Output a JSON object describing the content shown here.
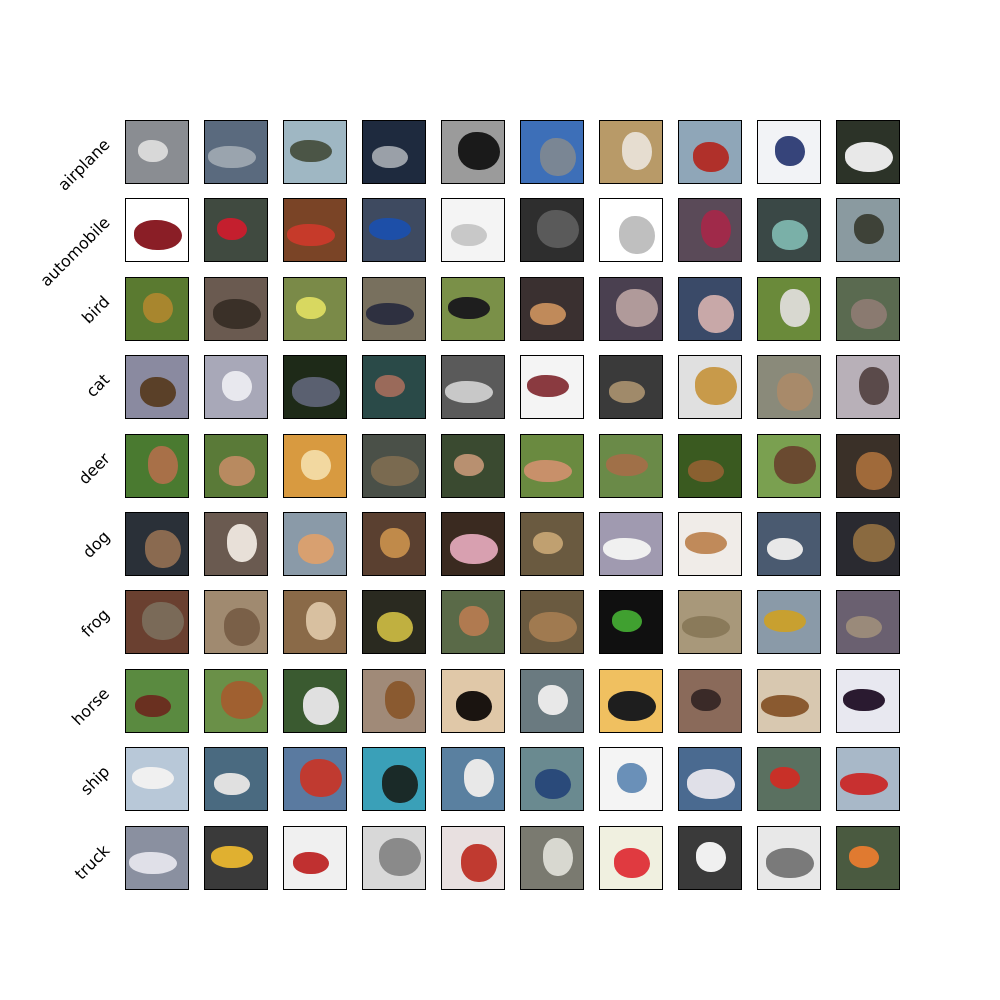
{
  "figure": {
    "rows": [
      {
        "label": "airplane",
        "subject": "airplane-icon",
        "tiles": [
          {
            "bg": "#8a8d92",
            "fg": "#d8d8d8"
          },
          {
            "bg": "#5a6a7e",
            "fg": "#9aa4ae"
          },
          {
            "bg": "#9fb7c3",
            "fg": "#4b5546"
          },
          {
            "bg": "#1e2a3e",
            "fg": "#9aa0a8"
          },
          {
            "bg": "#9b9b9b",
            "fg": "#1a1a1a"
          },
          {
            "bg": "#3d6fb8",
            "fg": "#7a8694"
          },
          {
            "bg": "#b89a68",
            "fg": "#e6ddd0"
          },
          {
            "bg": "#8fa6b8",
            "fg": "#b0302a"
          },
          {
            "bg": "#f2f3f6",
            "fg": "#36447a"
          },
          {
            "bg": "#2c3328",
            "fg": "#e8e8e8"
          }
        ]
      },
      {
        "label": "automobile",
        "subject": "car-icon",
        "tiles": [
          {
            "bg": "#ffffff",
            "fg": "#8a1e26"
          },
          {
            "bg": "#404a40",
            "fg": "#c41f2e"
          },
          {
            "bg": "#7a4426",
            "fg": "#c63a2a"
          },
          {
            "bg": "#3e4a60",
            "fg": "#1d4fa8"
          },
          {
            "bg": "#f4f4f4",
            "fg": "#c8c8c8"
          },
          {
            "bg": "#2e2e2e",
            "fg": "#5a5a5a"
          },
          {
            "bg": "#ffffff",
            "fg": "#bfbfbf"
          },
          {
            "bg": "#5a4a58",
            "fg": "#a02a4a"
          },
          {
            "bg": "#3a4846",
            "fg": "#7ab0a8"
          },
          {
            "bg": "#8a9aa0",
            "fg": "#3e4238"
          }
        ]
      },
      {
        "label": "bird",
        "subject": "bird-icon",
        "tiles": [
          {
            "bg": "#5a7a30",
            "fg": "#a8862e"
          },
          {
            "bg": "#6a5a50",
            "fg": "#3a3028"
          },
          {
            "bg": "#7a8a48",
            "fg": "#d8d860"
          },
          {
            "bg": "#78705e",
            "fg": "#2e3040"
          },
          {
            "bg": "#7a9048",
            "fg": "#1e1e1e"
          },
          {
            "bg": "#3a3030",
            "fg": "#c08a5a"
          },
          {
            "bg": "#4a4050",
            "fg": "#b09a9a"
          },
          {
            "bg": "#3a4a68",
            "fg": "#c8a8a8"
          },
          {
            "bg": "#6a8a3a",
            "fg": "#d8d8d0"
          },
          {
            "bg": "#5a6a50",
            "fg": "#8a7a70"
          }
        ]
      },
      {
        "label": "cat",
        "subject": "cat-icon",
        "tiles": [
          {
            "bg": "#8a8aa0",
            "fg": "#5a4028"
          },
          {
            "bg": "#a8a8b8",
            "fg": "#e8e8ee"
          },
          {
            "bg": "#1e2a18",
            "fg": "#5a6070"
          },
          {
            "bg": "#2a4a48",
            "fg": "#9a6a5a"
          },
          {
            "bg": "#5a5a5a",
            "fg": "#c8c8c8"
          },
          {
            "bg": "#f4f4f4",
            "fg": "#8a3a40"
          },
          {
            "bg": "#3a3a3a",
            "fg": "#a08a6a"
          },
          {
            "bg": "#e0e0e0",
            "fg": "#c89a4a"
          },
          {
            "bg": "#8a8a7a",
            "fg": "#a88a6a"
          },
          {
            "bg": "#b8b0b8",
            "fg": "#5a4a4a"
          }
        ]
      },
      {
        "label": "deer",
        "subject": "deer-icon",
        "tiles": [
          {
            "bg": "#4a7a30",
            "fg": "#a87048"
          },
          {
            "bg": "#5a7a38",
            "fg": "#b88a60"
          },
          {
            "bg": "#d89a40",
            "fg": "#f2d8a0"
          },
          {
            "bg": "#4a5048",
            "fg": "#7a6a50"
          },
          {
            "bg": "#3a4a30",
            "fg": "#b89070"
          },
          {
            "bg": "#6a8a40",
            "fg": "#c8906a"
          },
          {
            "bg": "#6a8a48",
            "fg": "#a07048"
          },
          {
            "bg": "#3a5a20",
            "fg": "#8a6030"
          },
          {
            "bg": "#7aa050",
            "fg": "#6a4a30"
          },
          {
            "bg": "#3a3028",
            "fg": "#a06a3a"
          }
        ]
      },
      {
        "label": "dog",
        "subject": "dog-icon",
        "tiles": [
          {
            "bg": "#2a3038",
            "fg": "#8a6a50"
          },
          {
            "bg": "#6a5a50",
            "fg": "#e8e0d8"
          },
          {
            "bg": "#8a9aa8",
            "fg": "#d8a070"
          },
          {
            "bg": "#5a4030",
            "fg": "#c08a4a"
          },
          {
            "bg": "#3a2a20",
            "fg": "#d8a0b0"
          },
          {
            "bg": "#6a5a40",
            "fg": "#c0a070"
          },
          {
            "bg": "#a09ab0",
            "fg": "#f0f0f0"
          },
          {
            "bg": "#f0ece8",
            "fg": "#c08a5a"
          },
          {
            "bg": "#4a5a70",
            "fg": "#e8e8e8"
          },
          {
            "bg": "#2a2a30",
            "fg": "#8a6a40"
          }
        ]
      },
      {
        "label": "frog",
        "subject": "frog-icon",
        "tiles": [
          {
            "bg": "#6a4030",
            "fg": "#7a6a58"
          },
          {
            "bg": "#a08a70",
            "fg": "#7a6048"
          },
          {
            "bg": "#8a6a48",
            "fg": "#d8c0a0"
          },
          {
            "bg": "#2a2a20",
            "fg": "#c0b040"
          },
          {
            "bg": "#5a6a48",
            "fg": "#b07a50"
          },
          {
            "bg": "#6a5a40",
            "fg": "#a07a50"
          },
          {
            "bg": "#101010",
            "fg": "#40a030"
          },
          {
            "bg": "#a8987a",
            "fg": "#8a7a5a"
          },
          {
            "bg": "#8a9aa8",
            "fg": "#c8a030"
          },
          {
            "bg": "#6a6070",
            "fg": "#9a8a7a"
          }
        ]
      },
      {
        "label": "horse",
        "subject": "horse-icon",
        "tiles": [
          {
            "bg": "#5a8a40",
            "fg": "#6a3020"
          },
          {
            "bg": "#6a9048",
            "fg": "#a06030"
          },
          {
            "bg": "#3a5a30",
            "fg": "#e0e0e0"
          },
          {
            "bg": "#a08a78",
            "fg": "#8a5a30"
          },
          {
            "bg": "#e0c8a8",
            "fg": "#1a1410"
          },
          {
            "bg": "#6a7a80",
            "fg": "#e8e8e8"
          },
          {
            "bg": "#f0c060",
            "fg": "#1e1e1e"
          },
          {
            "bg": "#8a6a5a",
            "fg": "#3a2a28"
          },
          {
            "bg": "#d8c8b0",
            "fg": "#8a5a30"
          },
          {
            "bg": "#e8e8f0",
            "fg": "#2a1a30"
          }
        ]
      },
      {
        "label": "ship",
        "subject": "ship-icon",
        "tiles": [
          {
            "bg": "#b8c8d8",
            "fg": "#f0f0f0"
          },
          {
            "bg": "#4a6a80",
            "fg": "#e0e0e0"
          },
          {
            "bg": "#5a7aa0",
            "fg": "#c03a30"
          },
          {
            "bg": "#3aa0b8",
            "fg": "#1a2a28"
          },
          {
            "bg": "#5a80a0",
            "fg": "#e8e8e8"
          },
          {
            "bg": "#6a8a90",
            "fg": "#2a4a7a"
          },
          {
            "bg": "#f4f4f4",
            "fg": "#6a90b8"
          },
          {
            "bg": "#4a6a90",
            "fg": "#e0e0e8"
          },
          {
            "bg": "#5a7060",
            "fg": "#c83028"
          },
          {
            "bg": "#a8b8c8",
            "fg": "#c83030"
          }
        ]
      },
      {
        "label": "truck",
        "subject": "truck-icon",
        "tiles": [
          {
            "bg": "#8a90a0",
            "fg": "#e0e0e8"
          },
          {
            "bg": "#3a3a3a",
            "fg": "#e0b030"
          },
          {
            "bg": "#f0f0f0",
            "fg": "#c03030"
          },
          {
            "bg": "#d8d8d8",
            "fg": "#8a8a8a"
          },
          {
            "bg": "#e8e0e0",
            "fg": "#c03a30"
          },
          {
            "bg": "#7a7a70",
            "fg": "#d8d8d0"
          },
          {
            "bg": "#f0f0e0",
            "fg": "#e03a40"
          },
          {
            "bg": "#3a3a3a",
            "fg": "#f0f0f0"
          },
          {
            "bg": "#e8e8e8",
            "fg": "#7a7a7a"
          },
          {
            "bg": "#4a5a40",
            "fg": "#e07a30"
          }
        ]
      }
    ]
  }
}
